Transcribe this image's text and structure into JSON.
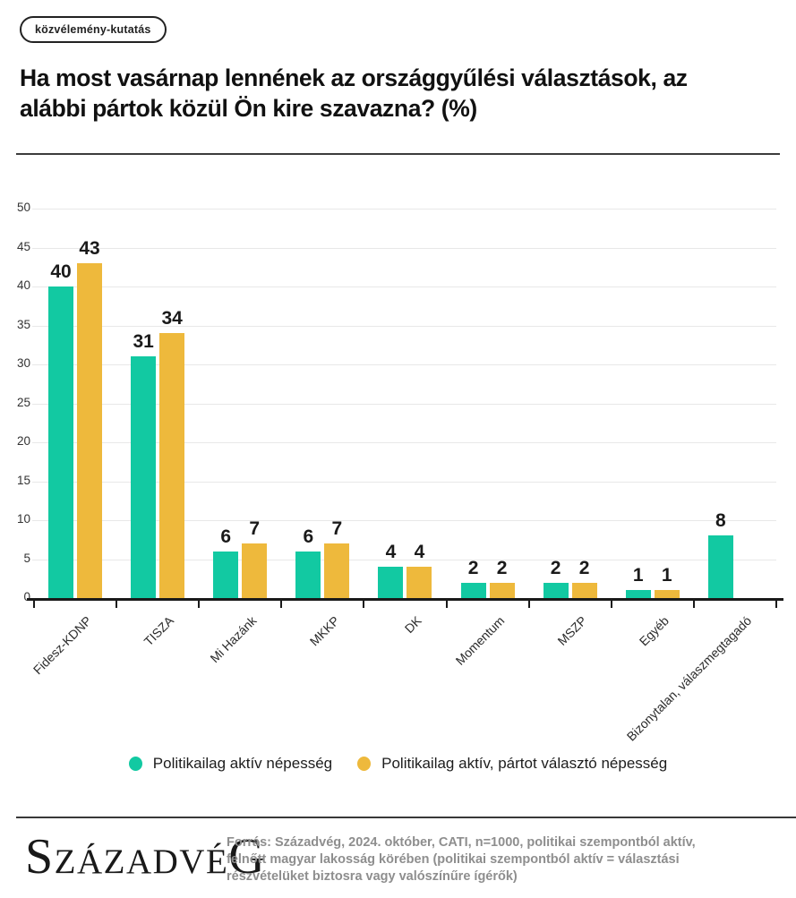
{
  "badge": {
    "label": "közvélemény-kutatás"
  },
  "title": "Ha most vasárnap lennének az országgyűlési választások, az\nalábbi pártok közül Ön kire szavazna? (%)",
  "chart_data": {
    "type": "bar",
    "categories": [
      "Fidesz-KDNP",
      "TISZA",
      "Mi Hazánk",
      "MKKP",
      "DK",
      "Momentum",
      "MSZP",
      "Egyéb",
      "Bizonytalan, válaszmegtagadó"
    ],
    "series": [
      {
        "name": "Politikailag aktív népesség",
        "color": "#12c9a2",
        "values": [
          40,
          31,
          6,
          6,
          4,
          2,
          2,
          1,
          8
        ]
      },
      {
        "name": "Politikailag aktív, pártot választó népesség",
        "color": "#eeb93c",
        "values": [
          43,
          34,
          7,
          7,
          4,
          2,
          2,
          1,
          null
        ]
      }
    ],
    "ylim": [
      0,
      50
    ],
    "ytick_step": 5,
    "yticks": [
      0,
      5,
      10,
      15,
      20,
      25,
      30,
      35,
      40,
      45,
      50
    ],
    "grid": true,
    "value_labels": true,
    "legend_position": "bottom",
    "colors": {
      "axis": "#1a1a1a",
      "gridline": "#e8e8e8",
      "value_label": "#1a1a1a"
    }
  },
  "footer": {
    "logo": {
      "first": "S",
      "middle": "ZÁZADVÉ",
      "last": "G",
      "full": "SZÁZADVÉG"
    },
    "source_lines": {
      "0": "Forrás: Századvég, 2024. október, CATI, n=1000, politikai szempontból aktív,",
      "1": "felnőtt magyar lakosság körében (politikai szempontból aktív = választási",
      "2": "részvételüket biztosra vagy valószínűre ígérők)"
    }
  }
}
